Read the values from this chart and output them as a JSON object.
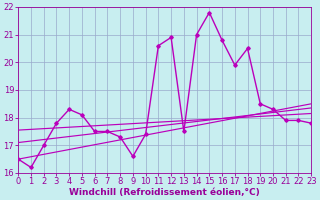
{
  "xlabel": "Windchill (Refroidissement éolien,°C)",
  "x": [
    0,
    1,
    2,
    3,
    4,
    5,
    6,
    7,
    8,
    9,
    10,
    11,
    12,
    13,
    14,
    15,
    16,
    17,
    18,
    19,
    20,
    21,
    22,
    23
  ],
  "y_main": [
    16.5,
    16.2,
    17.0,
    17.8,
    18.3,
    18.1,
    17.5,
    17.5,
    17.3,
    16.6,
    17.4,
    20.6,
    20.9,
    17.5,
    21.0,
    21.8,
    20.8,
    19.9,
    20.5,
    18.5,
    18.3,
    17.9,
    17.9,
    17.8
  ],
  "y_line1_x": [
    0,
    23
  ],
  "y_line1_y": [
    16.5,
    18.5
  ],
  "y_line2_x": [
    0,
    23
  ],
  "y_line2_y": [
    17.1,
    18.35
  ],
  "y_line3_x": [
    0,
    23
  ],
  "y_line3_y": [
    17.55,
    18.15
  ],
  "line_color": "#bb00bb",
  "bg_color": "#c8eef0",
  "grid_color": "#99aacc",
  "ylim": [
    16,
    22
  ],
  "xlim": [
    0,
    23
  ],
  "yticks": [
    16,
    17,
    18,
    19,
    20,
    21,
    22
  ],
  "xticks": [
    0,
    1,
    2,
    3,
    4,
    5,
    6,
    7,
    8,
    9,
    10,
    11,
    12,
    13,
    14,
    15,
    16,
    17,
    18,
    19,
    20,
    21,
    22,
    23
  ],
  "marker": "D",
  "markersize": 1.8,
  "linewidth": 1.0,
  "xlabel_fontsize": 6.5,
  "tick_fontsize": 6.0,
  "label_color": "#990099"
}
